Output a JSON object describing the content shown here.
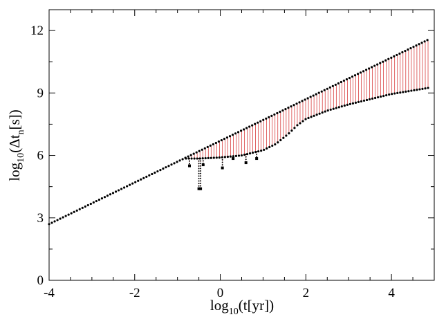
{
  "chart_data": {
    "type": "scatter",
    "title": "",
    "xlabel": {
      "main": "log",
      "sub": "10",
      "rest": "(t[yr])"
    },
    "ylabel": {
      "main": "log",
      "sub": "10",
      "open": "(Δt",
      "sub2": "n",
      "rest": "[s])"
    },
    "xlim": [
      -4,
      5
    ],
    "ylim": [
      0,
      13
    ],
    "xticks": [
      -4,
      -2,
      0,
      2,
      4
    ],
    "yticks": [
      0,
      3,
      6,
      9,
      12
    ],
    "grid": false,
    "colors": {
      "upper": "#000000",
      "lower": "#000000",
      "span": "#cc0000"
    },
    "series": [
      {
        "values_description": "upper branch: straight line, points",
        "x": [
          -4.0,
          -3.0,
          -2.0,
          -1.0,
          0.0,
          1.0,
          2.0,
          3.0,
          4.0,
          4.88
        ],
        "y": [
          2.7,
          3.7,
          4.7,
          5.7,
          6.7,
          7.7,
          8.7,
          9.7,
          10.7,
          11.58
        ]
      },
      {
        "values_description": "lower branch",
        "x": [
          -0.8,
          -0.5,
          0.0,
          0.5,
          1.0,
          1.3,
          1.6,
          1.8,
          2.0,
          2.5,
          3.0,
          3.5,
          4.0,
          4.5,
          4.88
        ],
        "y": [
          5.85,
          5.85,
          5.9,
          6.0,
          6.25,
          6.55,
          7.05,
          7.45,
          7.75,
          8.15,
          8.45,
          8.7,
          8.95,
          9.12,
          9.25
        ]
      },
      {
        "values_description": "outlier drops",
        "x": [
          -0.72,
          -0.5,
          -0.46,
          -0.4,
          0.05,
          0.3,
          0.6,
          0.85
        ],
        "y": [
          5.5,
          4.4,
          4.4,
          5.55,
          5.4,
          5.85,
          5.65,
          5.85
        ]
      }
    ]
  }
}
